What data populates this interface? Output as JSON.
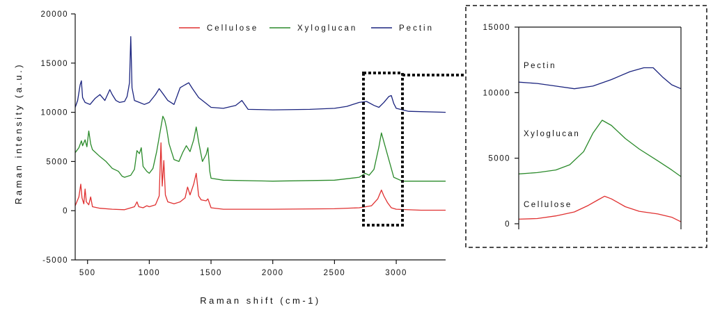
{
  "chart_data": [
    {
      "type": "line",
      "title": "",
      "xlabel": "Raman shift (cm-1)",
      "ylabel": "Raman intensity (a.u.)",
      "xlim": [
        400,
        3400
      ],
      "ylim": [
        -5000,
        20000
      ],
      "x_ticks": [
        500,
        1000,
        1500,
        2000,
        2500,
        3000
      ],
      "y_ticks": [
        -5000,
        0,
        5000,
        10000,
        15000,
        20000
      ],
      "grid": false,
      "legend": "top-right",
      "series": [
        {
          "name": "Cellulose",
          "color": "#e03030",
          "points": [
            [
              400,
              500
            ],
            [
              430,
              1400
            ],
            [
              445,
              2700
            ],
            [
              455,
              1300
            ],
            [
              470,
              700
            ],
            [
              480,
              2200
            ],
            [
              490,
              900
            ],
            [
              510,
              600
            ],
            [
              525,
              1400
            ],
            [
              540,
              400
            ],
            [
              600,
              250
            ],
            [
              700,
              150
            ],
            [
              800,
              100
            ],
            [
              880,
              400
            ],
            [
              900,
              900
            ],
            [
              915,
              400
            ],
            [
              950,
              300
            ],
            [
              980,
              500
            ],
            [
              1000,
              400
            ],
            [
              1050,
              600
            ],
            [
              1080,
              1500
            ],
            [
              1095,
              6900
            ],
            [
              1105,
              2500
            ],
            [
              1118,
              5100
            ],
            [
              1130,
              1600
            ],
            [
              1150,
              900
            ],
            [
              1200,
              700
            ],
            [
              1250,
              900
            ],
            [
              1290,
              1300
            ],
            [
              1310,
              2400
            ],
            [
              1330,
              1600
            ],
            [
              1360,
              2700
            ],
            [
              1380,
              3800
            ],
            [
              1400,
              1500
            ],
            [
              1420,
              1100
            ],
            [
              1460,
              1000
            ],
            [
              1475,
              1200
            ],
            [
              1500,
              300
            ],
            [
              1600,
              150
            ],
            [
              2000,
              150
            ],
            [
              2500,
              200
            ],
            [
              2700,
              300
            ],
            [
              2800,
              500
            ],
            [
              2850,
              1200
            ],
            [
              2880,
              2100
            ],
            [
              2900,
              1500
            ],
            [
              2930,
              800
            ],
            [
              2960,
              300
            ],
            [
              3000,
              150
            ],
            [
              3200,
              50
            ],
            [
              3400,
              50
            ]
          ]
        },
        {
          "name": "Xyloglucan",
          "color": "#2a8a2a",
          "points": [
            [
              400,
              5900
            ],
            [
              430,
              6400
            ],
            [
              450,
              7100
            ],
            [
              460,
              6600
            ],
            [
              480,
              7200
            ],
            [
              495,
              6500
            ],
            [
              510,
              8100
            ],
            [
              525,
              6800
            ],
            [
              540,
              6200
            ],
            [
              600,
              5500
            ],
            [
              650,
              5000
            ],
            [
              700,
              4300
            ],
            [
              750,
              4000
            ],
            [
              780,
              3500
            ],
            [
              800,
              3400
            ],
            [
              850,
              3600
            ],
            [
              880,
              4200
            ],
            [
              900,
              6100
            ],
            [
              920,
              5800
            ],
            [
              935,
              6400
            ],
            [
              950,
              4500
            ],
            [
              980,
              4000
            ],
            [
              1000,
              3800
            ],
            [
              1030,
              4300
            ],
            [
              1060,
              6000
            ],
            [
              1090,
              8200
            ],
            [
              1110,
              9600
            ],
            [
              1125,
              9200
            ],
            [
              1140,
              8400
            ],
            [
              1160,
              6800
            ],
            [
              1200,
              5200
            ],
            [
              1240,
              5000
            ],
            [
              1270,
              5900
            ],
            [
              1300,
              6600
            ],
            [
              1330,
              6000
            ],
            [
              1360,
              7200
            ],
            [
              1380,
              8500
            ],
            [
              1400,
              7000
            ],
            [
              1430,
              5000
            ],
            [
              1460,
              5700
            ],
            [
              1475,
              6400
            ],
            [
              1490,
              4000
            ],
            [
              1500,
              3300
            ],
            [
              1600,
              3100
            ],
            [
              2000,
              3000
            ],
            [
              2500,
              3100
            ],
            [
              2700,
              3400
            ],
            [
              2750,
              3800
            ],
            [
              2780,
              3600
            ],
            [
              2820,
              4200
            ],
            [
              2860,
              6500
            ],
            [
              2880,
              7900
            ],
            [
              2900,
              7000
            ],
            [
              2940,
              5200
            ],
            [
              2980,
              3400
            ],
            [
              3050,
              3000
            ],
            [
              3400,
              3000
            ]
          ]
        },
        {
          "name": "Pectin",
          "color": "#1a237e",
          "points": [
            [
              400,
              10500
            ],
            [
              420,
              11200
            ],
            [
              440,
              12800
            ],
            [
              450,
              13200
            ],
            [
              460,
              11500
            ],
            [
              480,
              11000
            ],
            [
              520,
              10800
            ],
            [
              560,
              11400
            ],
            [
              600,
              11800
            ],
            [
              640,
              11200
            ],
            [
              680,
              12300
            ],
            [
              700,
              11800
            ],
            [
              730,
              11200
            ],
            [
              760,
              11000
            ],
            [
              800,
              11100
            ],
            [
              820,
              11600
            ],
            [
              840,
              13000
            ],
            [
              850,
              17700
            ],
            [
              860,
              12500
            ],
            [
              880,
              11200
            ],
            [
              920,
              11000
            ],
            [
              960,
              10800
            ],
            [
              1000,
              11000
            ],
            [
              1050,
              11800
            ],
            [
              1080,
              12400
            ],
            [
              1110,
              11900
            ],
            [
              1150,
              11200
            ],
            [
              1200,
              10800
            ],
            [
              1250,
              12500
            ],
            [
              1290,
              12800
            ],
            [
              1320,
              13000
            ],
            [
              1350,
              12400
            ],
            [
              1400,
              11500
            ],
            [
              1450,
              11000
            ],
            [
              1500,
              10500
            ],
            [
              1600,
              10400
            ],
            [
              1700,
              10700
            ],
            [
              1750,
              11200
            ],
            [
              1800,
              10300
            ],
            [
              2000,
              10250
            ],
            [
              2300,
              10300
            ],
            [
              2500,
              10400
            ],
            [
              2600,
              10600
            ],
            [
              2700,
              11000
            ],
            [
              2760,
              11100
            ],
            [
              2820,
              10700
            ],
            [
              2860,
              10500
            ],
            [
              2900,
              11000
            ],
            [
              2940,
              11600
            ],
            [
              2960,
              11700
            ],
            [
              2980,
              10900
            ],
            [
              3000,
              10400
            ],
            [
              3100,
              10100
            ],
            [
              3400,
              10000
            ]
          ]
        }
      ]
    },
    {
      "type": "line",
      "title": "",
      "xlabel": "",
      "ylabel": "",
      "ylim": [
        0,
        15000
      ],
      "y_ticks": [
        0,
        5000,
        10000,
        15000
      ],
      "grid": false,
      "series": [
        {
          "name": "Pectin",
          "color": "#1a237e",
          "points": [
            [
              2700,
              10800
            ],
            [
              2740,
              10700
            ],
            [
              2780,
              10500
            ],
            [
              2820,
              10300
            ],
            [
              2860,
              10500
            ],
            [
              2900,
              11000
            ],
            [
              2940,
              11600
            ],
            [
              2970,
              11900
            ],
            [
              2990,
              11900
            ],
            [
              3010,
              11200
            ],
            [
              3030,
              10600
            ],
            [
              3050,
              10300
            ]
          ]
        },
        {
          "name": "Xyloglucan",
          "color": "#2a8a2a",
          "points": [
            [
              2700,
              3800
            ],
            [
              2740,
              3900
            ],
            [
              2780,
              4100
            ],
            [
              2810,
              4500
            ],
            [
              2840,
              5500
            ],
            [
              2860,
              6900
            ],
            [
              2880,
              7900
            ],
            [
              2900,
              7500
            ],
            [
              2930,
              6500
            ],
            [
              2960,
              5700
            ],
            [
              3000,
              4800
            ],
            [
              3030,
              4100
            ],
            [
              3050,
              3600
            ]
          ]
        },
        {
          "name": "Cellulose",
          "color": "#e03030",
          "points": [
            [
              2700,
              350
            ],
            [
              2740,
              400
            ],
            [
              2780,
              600
            ],
            [
              2820,
              900
            ],
            [
              2850,
              1400
            ],
            [
              2870,
              1800
            ],
            [
              2885,
              2100
            ],
            [
              2900,
              1900
            ],
            [
              2930,
              1300
            ],
            [
              2960,
              950
            ],
            [
              3000,
              750
            ],
            [
              3030,
              500
            ],
            [
              3050,
              150
            ]
          ]
        }
      ]
    }
  ],
  "inset_labels": [
    "Pectin",
    "Xyloglucan",
    "Cellulose"
  ]
}
